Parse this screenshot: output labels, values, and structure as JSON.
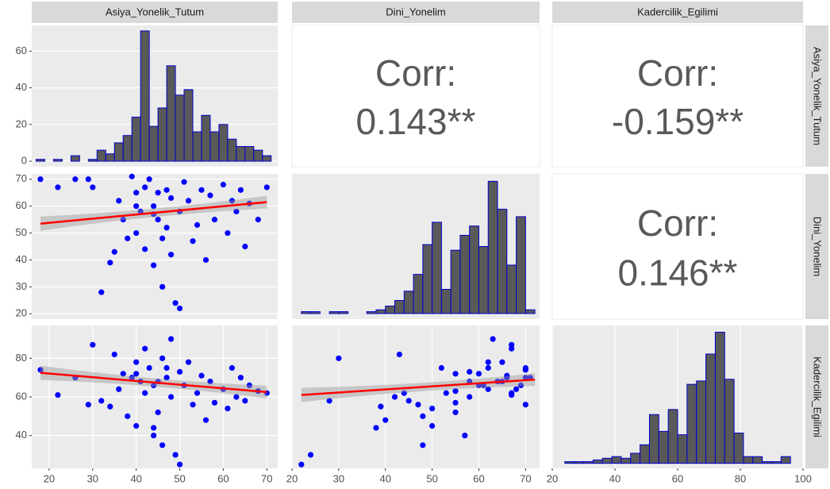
{
  "variables": [
    "Asiya_Yonelik_Tutum",
    "Dini_Yonelim",
    "Kadercilik_Egilimi"
  ],
  "chart_data": [
    {
      "type": "histogram",
      "bins": [
        17,
        19,
        21,
        23,
        25,
        27,
        29,
        31,
        33,
        35,
        37,
        39,
        41,
        43,
        45,
        47,
        49,
        51,
        53,
        55,
        57,
        59,
        61,
        63,
        65,
        67,
        69,
        71
      ],
      "values": [
        1,
        0,
        1,
        0,
        3,
        0,
        1,
        6,
        4,
        10,
        14,
        24,
        71,
        19,
        29,
        52,
        36,
        39,
        16,
        25,
        16,
        20,
        12,
        8,
        8,
        6,
        3
      ],
      "color": "#595959",
      "edge": "#0000cc",
      "xlim": [
        16,
        72.5
      ],
      "ylim": [
        -3,
        74
      ],
      "yticks": [
        0,
        20,
        40,
        60
      ]
    },
    {
      "type": "corr",
      "label": "Corr:",
      "value": "0.143**"
    },
    {
      "type": "corr",
      "label": "Corr:",
      "value": "-0.159**"
    },
    {
      "type": "scatter",
      "color": "#0000ff",
      "xlim": [
        16,
        72.5
      ],
      "ylim": [
        18,
        72
      ],
      "yticks": [
        20,
        30,
        40,
        50,
        60,
        70
      ],
      "x": [
        18,
        22,
        26,
        29,
        30,
        32,
        34,
        35,
        36,
        37,
        38,
        39,
        40,
        40,
        41,
        42,
        42,
        43,
        44,
        44,
        45,
        46,
        46,
        47,
        48,
        48,
        49,
        50,
        50,
        51,
        52,
        53,
        54,
        55,
        56,
        57,
        58,
        60,
        61,
        62,
        63,
        64,
        65,
        66,
        68,
        70,
        47,
        45,
        40,
        44
      ],
      "values": [
        70,
        67,
        70,
        70,
        67,
        28,
        39,
        43,
        62,
        55,
        48,
        71,
        65,
        50,
        58,
        44,
        67,
        70,
        38,
        60,
        55,
        30,
        48,
        66,
        42,
        63,
        24,
        22,
        58,
        69,
        62,
        47,
        53,
        66,
        40,
        64,
        55,
        68,
        50,
        62,
        58,
        66,
        45,
        61,
        55,
        67,
        52,
        65,
        60,
        57
      ],
      "fit": {
        "color": "#ff0000",
        "x": [
          18,
          70
        ],
        "y": [
          53.5,
          61.5
        ]
      }
    },
    {
      "type": "histogram",
      "bins": [
        22,
        24,
        26,
        28,
        30,
        32,
        34,
        36,
        38,
        40,
        42,
        44,
        46,
        48,
        50,
        52,
        54,
        56,
        58,
        60,
        62,
        64,
        66,
        68,
        70,
        72
      ],
      "values": [
        1,
        1,
        0,
        1,
        1,
        0,
        0,
        1,
        2,
        4,
        7,
        12,
        21,
        37,
        49,
        13,
        34,
        42,
        47,
        36,
        71,
        56,
        26,
        52,
        2
      ],
      "color": "#595959",
      "edge": "#0000cc",
      "xlim": [
        20,
        73
      ],
      "ylim": [
        -3,
        75
      ]
    },
    {
      "type": "corr",
      "label": "Corr:",
      "value": "0.146**"
    },
    {
      "type": "scatter",
      "color": "#0000ff",
      "xlim": [
        16,
        72.5
      ],
      "ylim": [
        23,
        97
      ],
      "yticks": [
        40,
        60,
        80
      ],
      "xticks": [
        20,
        30,
        40,
        50,
        60,
        70
      ],
      "x": [
        18,
        22,
        26,
        29,
        30,
        32,
        34,
        35,
        36,
        37,
        38,
        39,
        40,
        40,
        41,
        42,
        42,
        43,
        44,
        44,
        45,
        46,
        46,
        47,
        48,
        48,
        49,
        50,
        50,
        51,
        52,
        53,
        54,
        55,
        56,
        57,
        58,
        60,
        61,
        62,
        63,
        64,
        65,
        66,
        68,
        70,
        47,
        45,
        40,
        44
      ],
      "values": [
        74,
        61,
        70,
        56,
        87,
        58,
        55,
        82,
        64,
        72,
        50,
        70,
        78,
        45,
        68,
        62,
        85,
        75,
        44,
        66,
        52,
        80,
        35,
        70,
        60,
        90,
        30,
        25,
        73,
        66,
        78,
        56,
        62,
        71,
        48,
        68,
        57,
        64,
        54,
        75,
        60,
        70,
        58,
        66,
        63,
        62,
        75,
        68,
        72,
        40
      ],
      "fit": {
        "color": "#ff0000",
        "x": [
          18,
          70
        ],
        "y": [
          72.5,
          62.5
        ]
      }
    },
    {
      "type": "scatter",
      "color": "#0000ff",
      "xlim": [
        20,
        73
      ],
      "ylim": [
        23,
        97
      ],
      "xticks": [
        20,
        30,
        40,
        50,
        60,
        70
      ],
      "x": [
        70,
        67,
        70,
        70,
        67,
        28,
        39,
        43,
        62,
        55,
        48,
        71,
        65,
        50,
        58,
        44,
        67,
        70,
        38,
        60,
        55,
        30,
        48,
        66,
        42,
        63,
        24,
        22,
        58,
        69,
        62,
        47,
        53,
        66,
        40,
        64,
        55,
        68,
        50,
        62,
        58,
        66,
        45,
        61,
        55,
        67,
        52,
        65,
        60,
        57
      ],
      "values": [
        74,
        61,
        70,
        56,
        87,
        58,
        55,
        82,
        64,
        72,
        50,
        70,
        78,
        45,
        68,
        62,
        85,
        75,
        44,
        66,
        52,
        80,
        35,
        70,
        60,
        90,
        30,
        25,
        73,
        66,
        78,
        56,
        62,
        71,
        48,
        68,
        57,
        64,
        54,
        75,
        60,
        70,
        58,
        66,
        63,
        62,
        75,
        68,
        72,
        40
      ],
      "fit": {
        "color": "#ff0000",
        "x": [
          22,
          72
        ],
        "y": [
          61,
          69
        ]
      }
    },
    {
      "type": "histogram",
      "bins": [
        24,
        27,
        30,
        33,
        36,
        39,
        42,
        45,
        48,
        51,
        54,
        57,
        60,
        63,
        66,
        69,
        72,
        75,
        78,
        81,
        84,
        87,
        90,
        93,
        96
      ],
      "values": [
        1,
        1,
        1,
        2,
        3,
        4,
        3,
        6,
        11,
        29,
        19,
        32,
        17,
        47,
        49,
        65,
        78,
        50,
        18,
        4,
        4,
        1,
        1,
        4
      ],
      "color": "#595959",
      "edge": "#0000cc",
      "xlim": [
        20,
        100
      ],
      "ylim": [
        -3,
        82
      ],
      "xticks": [
        20,
        40,
        60,
        80,
        100
      ]
    }
  ]
}
